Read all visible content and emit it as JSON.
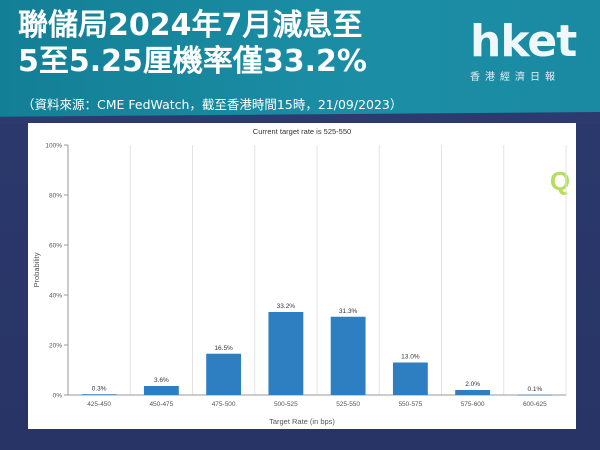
{
  "banner": {
    "headline_line1": "聯儲局2024年7月減息至",
    "headline_line2": "5至5.25厘機率僅33.2%",
    "source": "（資料來源：CME FedWatch，截至香港時間15時，21/09/2023）"
  },
  "logo": {
    "word": "hket",
    "sub": "香港經濟日報"
  },
  "colors": {
    "banner": "#1a8aa2",
    "background": "#2c3a6d",
    "bar": "#2e7fc1",
    "watermark": "#b8dc5e"
  },
  "chart_data": {
    "type": "bar",
    "title": "Current target rate is 525-550",
    "xlabel": "Target Rate (in bps)",
    "ylabel": "Probability",
    "categories": [
      "425-450",
      "450-475",
      "475-500",
      "500-525",
      "525-550",
      "550-575",
      "575-600",
      "600-625"
    ],
    "values": [
      0.3,
      3.6,
      16.5,
      33.2,
      31.3,
      13.0,
      2.0,
      0.1
    ],
    "data_labels": [
      "0.3%",
      "3.6%",
      "16.5%",
      "33.2%",
      "31.3%",
      "13.0%",
      "2.0%",
      "0.1%"
    ],
    "ylim": [
      0,
      100
    ],
    "yticks": [
      0,
      20,
      40,
      60,
      80,
      100
    ],
    "ytick_labels": [
      "0%",
      "20%",
      "40%",
      "60%",
      "80%",
      "100%"
    ],
    "grid": "vertical",
    "watermark": "Q"
  }
}
